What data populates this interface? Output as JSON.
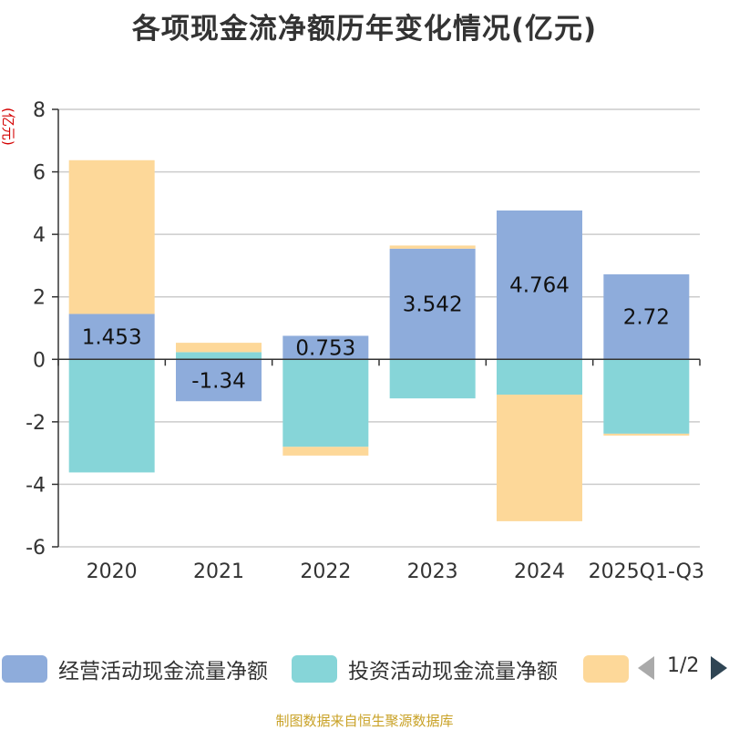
{
  "chart_data": {
    "type": "bar",
    "stacked": true,
    "title": "各项现金流净额历年变化情况(亿元)",
    "ylabel": "(亿元)",
    "ylim": [
      -6,
      8
    ],
    "yticks": [
      8,
      6,
      4,
      2,
      0,
      -2,
      -4,
      -6
    ],
    "categories": [
      "2020",
      "2021",
      "2022",
      "2023",
      "2024",
      "2025Q1-Q3"
    ],
    "series": [
      {
        "name": "经营活动现金流量净额",
        "color": "#8eacdb",
        "values": [
          1.453,
          -1.34,
          0.753,
          3.542,
          4.764,
          2.72
        ]
      },
      {
        "name": "投资活动现金流量净额",
        "color": "#86d5d8",
        "values": [
          -3.62,
          0.23,
          -2.8,
          -1.25,
          -1.13,
          -2.38
        ]
      },
      {
        "name": "",
        "color": "#fdd899",
        "values": [
          4.92,
          0.3,
          -0.28,
          0.1,
          -4.05,
          -0.06
        ]
      }
    ],
    "data_labels": [
      "1.453",
      "-1.34",
      "0.753",
      "3.542",
      "4.764",
      "2.72"
    ]
  },
  "legend": {
    "items": [
      {
        "label": "经营活动现金流量净额",
        "color": "#8eacdb"
      },
      {
        "label": "投资活动现金流量净额",
        "color": "#86d5d8"
      },
      {
        "label": "",
        "color": "#fdd899"
      }
    ],
    "page": "1/2"
  },
  "source": "制图数据来自恒生聚源数据库"
}
